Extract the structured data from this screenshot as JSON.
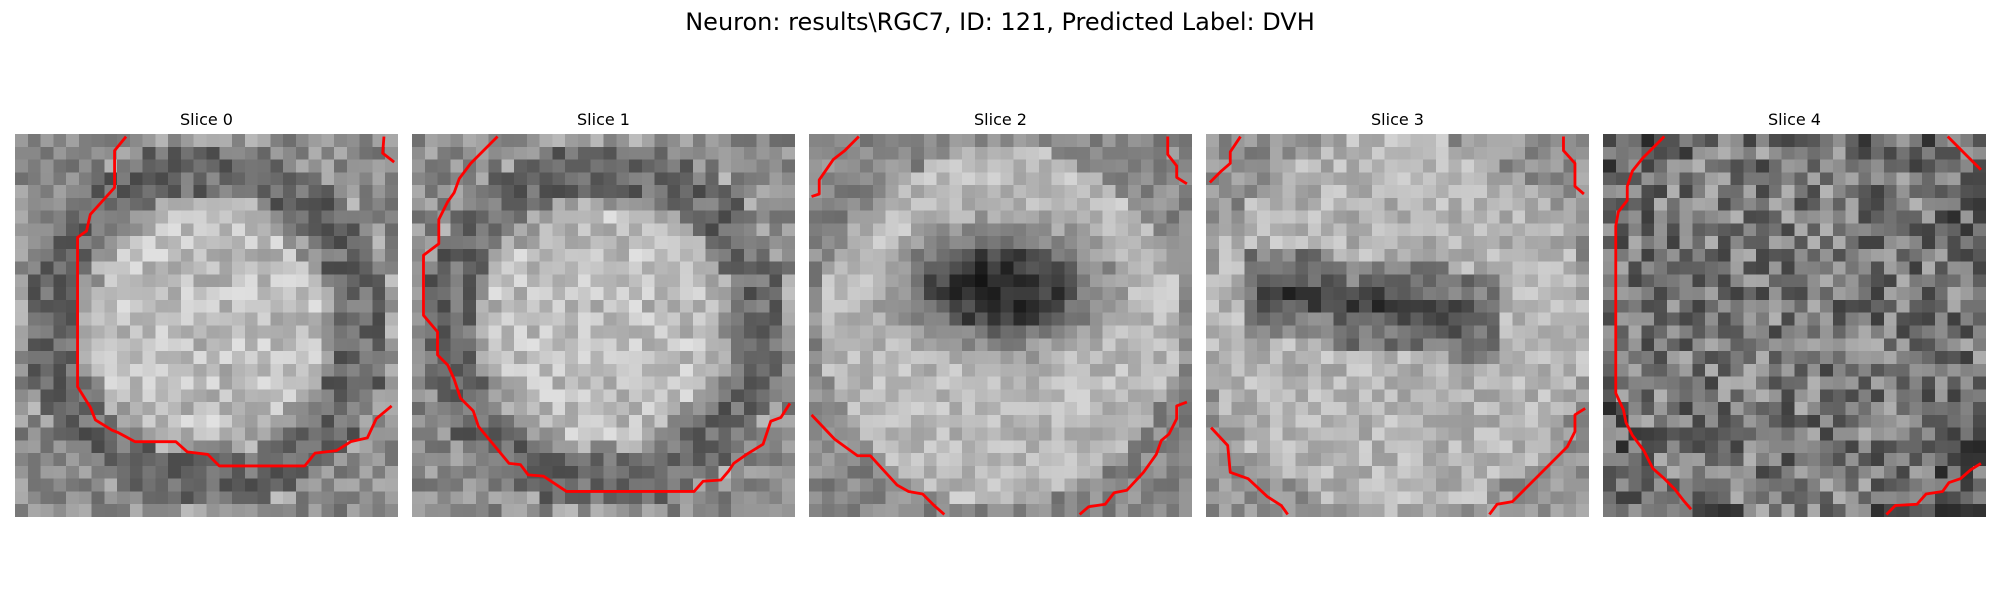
{
  "figure": {
    "title": "Neuron: results\\RGC7, ID: 121, Predicted Label: DVH"
  },
  "slices": [
    {
      "label": "Slice 0",
      "pattern": "ring-bright-center",
      "contour_color": "#ff0000"
    },
    {
      "label": "Slice 1",
      "pattern": "ring-bright-center",
      "contour_color": "#ff0000"
    },
    {
      "label": "Slice 2",
      "pattern": "dark-center-bright-ring",
      "contour_color": "#ff0000"
    },
    {
      "label": "Slice 3",
      "pattern": "dark-band-bright-field",
      "contour_color": "#ff0000"
    },
    {
      "label": "Slice 4",
      "pattern": "noise-midgray",
      "contour_color": "#ff0000"
    }
  ]
}
